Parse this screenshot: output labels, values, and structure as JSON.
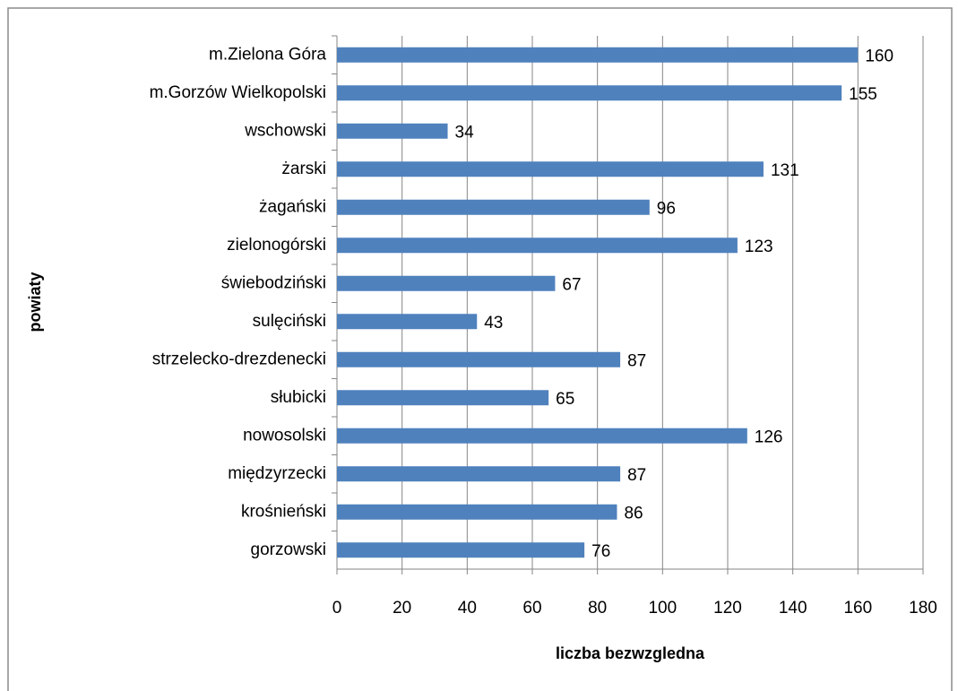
{
  "chart_data": {
    "type": "hbar",
    "categories": [
      "m.Zielona Góra",
      "m.Gorzów Wielkopolski",
      "wschowski",
      "żarski",
      "żagański",
      "zielonogórski",
      "świebodziński",
      "sulęciński",
      "strzelecko-drezdenecki",
      "słubicki",
      "nowosolski",
      "międzyrzecki",
      "krośnieński",
      "gorzowski"
    ],
    "values": [
      160,
      155,
      34,
      131,
      96,
      123,
      67,
      43,
      87,
      65,
      126,
      87,
      86,
      76
    ],
    "color": "#4f81bd",
    "xlim": [
      0,
      180
    ],
    "xticks": [
      0,
      20,
      40,
      60,
      80,
      100,
      120,
      140,
      160,
      180
    ],
    "xlabel": "liczba bezwzgledna",
    "ylabel": "powiaty",
    "grid": true
  }
}
